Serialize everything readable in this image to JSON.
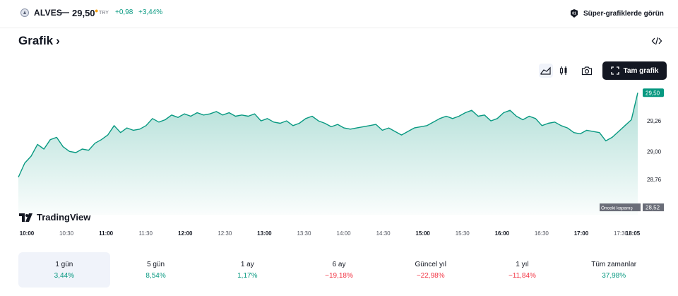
{
  "header": {
    "symbol": "ALVES",
    "separator": "—",
    "price": "29,50",
    "currency": "TRY",
    "change": "+0,98",
    "change_percent": "+3,44%",
    "super_charts_label": "Süper-grafiklerde görün"
  },
  "section": {
    "title": "Grafik",
    "chevron": "›"
  },
  "toolbar": {
    "icons": [
      "area-chart-icon",
      "candlestick-icon",
      "camera-icon"
    ],
    "full_chart_label": "Tam grafik"
  },
  "branding": {
    "name": "TradingView"
  },
  "colors": {
    "line": "#089981",
    "positive": "#089981",
    "negative": "#f23645",
    "dark": "#131722"
  },
  "chart_data": {
    "type": "area",
    "x_ticks": [
      "10:00",
      "10:30",
      "11:00",
      "11:30",
      "12:00",
      "12:30",
      "13:00",
      "13:30",
      "14:00",
      "14:30",
      "15:00",
      "15:30",
      "16:00",
      "16:30",
      "17:00",
      "17:30",
      "18:05"
    ],
    "x_ticks_bold": [
      "10:00",
      "11:00",
      "12:00",
      "13:00",
      "15:00",
      "16:00",
      "17:00",
      "18:05"
    ],
    "y_ticks": [
      "29,26",
      "29,00",
      "28,76"
    ],
    "ylim": [
      28.46,
      29.58
    ],
    "current_price": 29.5,
    "current_price_label": "29,50",
    "previous_close": 28.52,
    "previous_close_label": "28,52",
    "previous_close_text": "Önceki kapanış",
    "x": [
      "10:00",
      "10:05",
      "10:10",
      "10:15",
      "10:20",
      "10:25",
      "10:30",
      "10:35",
      "10:40",
      "10:45",
      "10:50",
      "10:55",
      "11:00",
      "11:05",
      "11:10",
      "11:15",
      "11:20",
      "11:25",
      "11:30",
      "11:35",
      "11:40",
      "11:45",
      "11:50",
      "11:55",
      "12:00",
      "12:05",
      "12:10",
      "12:15",
      "12:20",
      "12:25",
      "12:30",
      "12:35",
      "12:40",
      "12:45",
      "12:50",
      "12:55",
      "13:00",
      "13:05",
      "13:10",
      "13:15",
      "13:20",
      "13:25",
      "13:30",
      "13:35",
      "13:40",
      "13:45",
      "13:50",
      "13:55",
      "14:00",
      "14:05",
      "14:10",
      "14:15",
      "14:20",
      "14:25",
      "14:30",
      "14:35",
      "14:40",
      "14:45",
      "14:50",
      "14:55",
      "15:00",
      "15:05",
      "15:10",
      "15:15",
      "15:20",
      "15:25",
      "15:30",
      "15:35",
      "15:40",
      "15:45",
      "15:50",
      "15:55",
      "16:00",
      "16:05",
      "16:10",
      "16:15",
      "16:20",
      "16:25",
      "16:30",
      "16:35",
      "16:40",
      "16:45",
      "16:50",
      "16:55",
      "17:00",
      "17:05",
      "17:10",
      "17:15",
      "17:20",
      "17:25",
      "17:30",
      "17:35",
      "17:40",
      "17:45",
      "17:50",
      "17:55",
      "18:00",
      "18:05"
    ],
    "values": [
      28.78,
      28.9,
      28.96,
      29.06,
      29.02,
      29.1,
      29.12,
      29.04,
      29.0,
      28.99,
      29.02,
      29.01,
      29.07,
      29.1,
      29.14,
      29.22,
      29.16,
      29.2,
      29.18,
      29.19,
      29.22,
      29.28,
      29.25,
      29.27,
      29.31,
      29.29,
      29.32,
      29.3,
      29.33,
      29.31,
      29.32,
      29.34,
      29.31,
      29.33,
      29.3,
      29.31,
      29.3,
      29.32,
      29.26,
      29.28,
      29.25,
      29.24,
      29.26,
      29.22,
      29.24,
      29.28,
      29.3,
      29.26,
      29.24,
      29.21,
      29.23,
      29.2,
      29.19,
      29.2,
      29.21,
      29.22,
      29.23,
      29.18,
      29.2,
      29.17,
      29.14,
      29.17,
      29.2,
      29.21,
      29.22,
      29.25,
      29.28,
      29.3,
      29.28,
      29.3,
      29.33,
      29.35,
      29.3,
      29.31,
      29.26,
      29.28,
      29.33,
      29.35,
      29.3,
      29.27,
      29.3,
      29.28,
      29.22,
      29.24,
      29.25,
      29.22,
      29.2,
      29.16,
      29.15,
      29.18,
      29.17,
      29.16,
      29.09,
      29.12,
      29.17,
      29.22,
      29.27,
      29.5
    ]
  },
  "ranges": [
    {
      "label": "1 gün",
      "value": "3,44%",
      "sign": "pos",
      "active": true
    },
    {
      "label": "5 gün",
      "value": "8,54%",
      "sign": "pos",
      "active": false
    },
    {
      "label": "1 ay",
      "value": "1,17%",
      "sign": "pos",
      "active": false
    },
    {
      "label": "6 ay",
      "value": "−19,18%",
      "sign": "neg",
      "active": false
    },
    {
      "label": "Güncel yıl",
      "value": "−22,98%",
      "sign": "neg",
      "active": false
    },
    {
      "label": "1 yıl",
      "value": "−11,84%",
      "sign": "neg",
      "active": false
    },
    {
      "label": "Tüm zamanlar",
      "value": "37,98%",
      "sign": "pos",
      "active": false
    }
  ]
}
